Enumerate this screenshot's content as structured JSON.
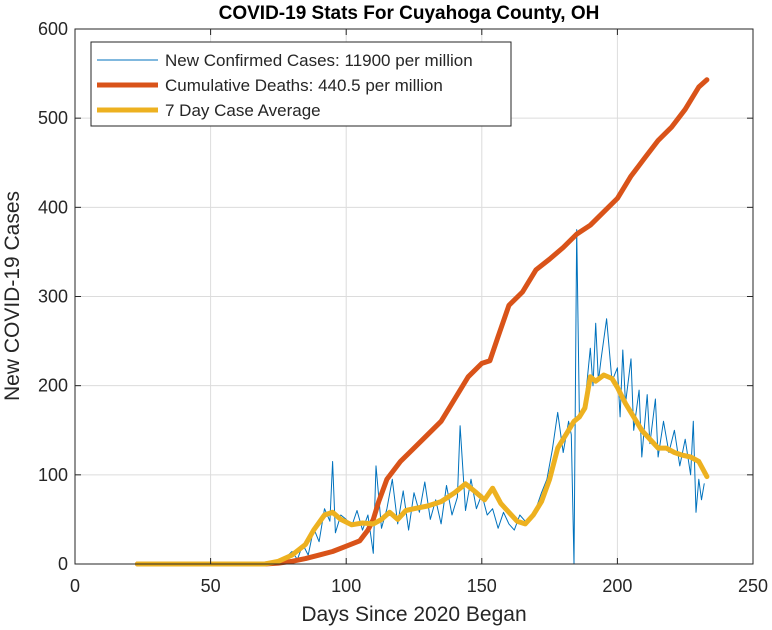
{
  "chart_data": {
    "type": "line",
    "title": "COVID-19 Stats For Cuyahoga County, OH",
    "xlabel": "Days Since 2020 Began",
    "ylabel": "New COVID-19 Cases",
    "xlim": [
      0,
      250
    ],
    "ylim": [
      0,
      600
    ],
    "xticks": [
      0,
      50,
      100,
      150,
      200,
      250
    ],
    "yticks": [
      0,
      100,
      200,
      300,
      400,
      500,
      600
    ],
    "grid": true,
    "legend_position": "top-left",
    "series": [
      {
        "name": "New Confirmed Cases: 11900 per million",
        "color": "#0072BD",
        "style": "thin",
        "points": [
          [
            23,
            0
          ],
          [
            30,
            0
          ],
          [
            40,
            0
          ],
          [
            50,
            0
          ],
          [
            60,
            0
          ],
          [
            66,
            0
          ],
          [
            70,
            1
          ],
          [
            74,
            4
          ],
          [
            76,
            2
          ],
          [
            78,
            8
          ],
          [
            80,
            14
          ],
          [
            82,
            5
          ],
          [
            84,
            22
          ],
          [
            86,
            10
          ],
          [
            88,
            40
          ],
          [
            90,
            25
          ],
          [
            92,
            62
          ],
          [
            94,
            48
          ],
          [
            95,
            115
          ],
          [
            96,
            35
          ],
          [
            98,
            55
          ],
          [
            100,
            50
          ],
          [
            102,
            42
          ],
          [
            104,
            60
          ],
          [
            106,
            38
          ],
          [
            108,
            55
          ],
          [
            110,
            12
          ],
          [
            111,
            110
          ],
          [
            113,
            40
          ],
          [
            115,
            62
          ],
          [
            117,
            95
          ],
          [
            119,
            45
          ],
          [
            121,
            82
          ],
          [
            123,
            38
          ],
          [
            125,
            80
          ],
          [
            127,
            58
          ],
          [
            129,
            92
          ],
          [
            131,
            50
          ],
          [
            133,
            72
          ],
          [
            135,
            45
          ],
          [
            137,
            88
          ],
          [
            139,
            55
          ],
          [
            141,
            75
          ],
          [
            142,
            155
          ],
          [
            144,
            60
          ],
          [
            146,
            95
          ],
          [
            148,
            62
          ],
          [
            150,
            78
          ],
          [
            152,
            55
          ],
          [
            154,
            62
          ],
          [
            156,
            40
          ],
          [
            158,
            58
          ],
          [
            160,
            45
          ],
          [
            162,
            38
          ],
          [
            164,
            55
          ],
          [
            166,
            48
          ],
          [
            168,
            52
          ],
          [
            170,
            62
          ],
          [
            172,
            80
          ],
          [
            174,
            95
          ],
          [
            176,
            128
          ],
          [
            178,
            170
          ],
          [
            180,
            125
          ],
          [
            182,
            160
          ],
          [
            183,
            145
          ],
          [
            184,
            0
          ],
          [
            185,
            375
          ],
          [
            186,
            165
          ],
          [
            188,
            180
          ],
          [
            190,
            242
          ],
          [
            191,
            200
          ],
          [
            192,
            270
          ],
          [
            193,
            205
          ],
          [
            194,
            230
          ],
          [
            196,
            275
          ],
          [
            198,
            205
          ],
          [
            200,
            220
          ],
          [
            201,
            165
          ],
          [
            202,
            240
          ],
          [
            203,
            180
          ],
          [
            205,
            230
          ],
          [
            206,
            150
          ],
          [
            208,
            195
          ],
          [
            209,
            120
          ],
          [
            211,
            190
          ],
          [
            212,
            135
          ],
          [
            214,
            185
          ],
          [
            215,
            120
          ],
          [
            217,
            160
          ],
          [
            219,
            125
          ],
          [
            221,
            150
          ],
          [
            223,
            110
          ],
          [
            225,
            140
          ],
          [
            227,
            100
          ],
          [
            228,
            160
          ],
          [
            229,
            58
          ],
          [
            230,
            95
          ],
          [
            231,
            72
          ],
          [
            232,
            90
          ]
        ]
      },
      {
        "name": "Cumulative Deaths: 440.5 per million",
        "color": "#D95319",
        "style": "thick",
        "points": [
          [
            23,
            0
          ],
          [
            40,
            0
          ],
          [
            60,
            0
          ],
          [
            70,
            0
          ],
          [
            75,
            1
          ],
          [
            80,
            3
          ],
          [
            85,
            6
          ],
          [
            90,
            10
          ],
          [
            95,
            14
          ],
          [
            100,
            20
          ],
          [
            105,
            26
          ],
          [
            108,
            38
          ],
          [
            110,
            50
          ],
          [
            112,
            70
          ],
          [
            115,
            95
          ],
          [
            120,
            115
          ],
          [
            125,
            130
          ],
          [
            130,
            145
          ],
          [
            135,
            160
          ],
          [
            140,
            185
          ],
          [
            145,
            210
          ],
          [
            150,
            225
          ],
          [
            153,
            228
          ],
          [
            156,
            255
          ],
          [
            160,
            290
          ],
          [
            165,
            305
          ],
          [
            170,
            330
          ],
          [
            175,
            342
          ],
          [
            180,
            355
          ],
          [
            185,
            370
          ],
          [
            190,
            380
          ],
          [
            195,
            395
          ],
          [
            200,
            410
          ],
          [
            205,
            435
          ],
          [
            210,
            455
          ],
          [
            215,
            475
          ],
          [
            220,
            490
          ],
          [
            225,
            510
          ],
          [
            230,
            535
          ],
          [
            233,
            543
          ]
        ]
      },
      {
        "name": "7 Day Case Average",
        "color": "#EDB120",
        "style": "thick",
        "points": [
          [
            23,
            0
          ],
          [
            40,
            0
          ],
          [
            60,
            0
          ],
          [
            70,
            0
          ],
          [
            75,
            3
          ],
          [
            80,
            10
          ],
          [
            85,
            22
          ],
          [
            88,
            38
          ],
          [
            92,
            55
          ],
          [
            95,
            58
          ],
          [
            98,
            50
          ],
          [
            102,
            44
          ],
          [
            106,
            46
          ],
          [
            110,
            45
          ],
          [
            113,
            50
          ],
          [
            116,
            58
          ],
          [
            119,
            50
          ],
          [
            122,
            60
          ],
          [
            125,
            62
          ],
          [
            130,
            65
          ],
          [
            135,
            70
          ],
          [
            140,
            80
          ],
          [
            144,
            90
          ],
          [
            148,
            80
          ],
          [
            151,
            72
          ],
          [
            154,
            85
          ],
          [
            157,
            68
          ],
          [
            160,
            58
          ],
          [
            163,
            48
          ],
          [
            166,
            45
          ],
          [
            169,
            55
          ],
          [
            172,
            70
          ],
          [
            175,
            95
          ],
          [
            178,
            130
          ],
          [
            181,
            145
          ],
          [
            184,
            160
          ],
          [
            186,
            165
          ],
          [
            188,
            175
          ],
          [
            190,
            210
          ],
          [
            192,
            205
          ],
          [
            195,
            212
          ],
          [
            198,
            208
          ],
          [
            200,
            198
          ],
          [
            203,
            180
          ],
          [
            206,
            165
          ],
          [
            209,
            150
          ],
          [
            212,
            140
          ],
          [
            215,
            130
          ],
          [
            218,
            130
          ],
          [
            221,
            125
          ],
          [
            224,
            122
          ],
          [
            227,
            120
          ],
          [
            230,
            115
          ],
          [
            233,
            98
          ]
        ]
      }
    ]
  }
}
